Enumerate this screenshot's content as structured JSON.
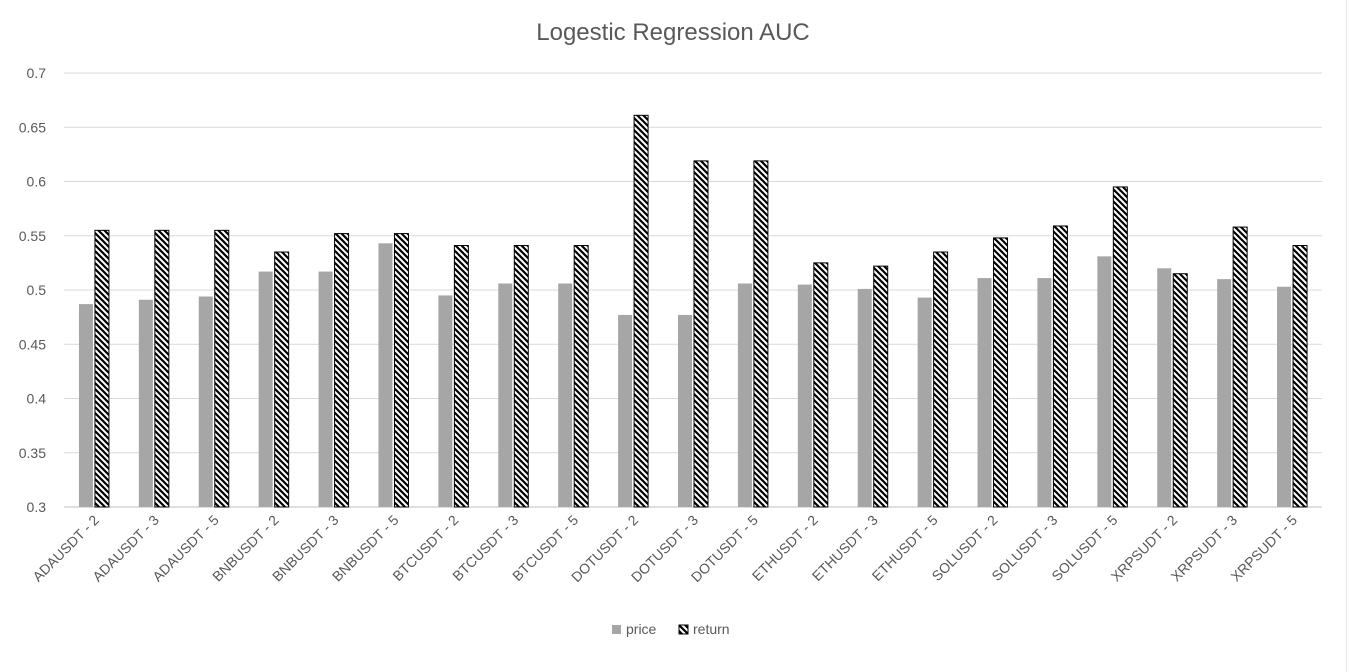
{
  "chart_data": {
    "type": "bar",
    "title": "Logestic Regression AUC",
    "xlabel": "",
    "ylabel": "",
    "ylim": [
      0.3,
      0.7
    ],
    "yticks": [
      "0.3",
      "0.35",
      "0.4",
      "0.45",
      "0.5",
      "0.55",
      "0.6",
      "0.65",
      "0.7"
    ],
    "grid": true,
    "legend": "bottom",
    "categories": [
      "ADAUSDT - 2",
      "ADAUSDT - 3",
      "ADAUSDT - 5",
      "BNBUSDT - 2",
      "BNBUSDT - 3",
      "BNBUSDT - 5",
      "BTCUSDT - 2",
      "BTCUSDT - 3",
      "BTCUSDT - 5",
      "DOTUSDT - 2",
      "DOTUSDT - 3",
      "DOTUSDT - 5",
      "ETHUSDT - 2",
      "ETHUSDT - 3",
      "ETHUSDT - 5",
      "SOLUSDT - 2",
      "SOLUSDT - 3",
      "SOLUSDT - 5",
      "XRPSUDT - 2",
      "XRPSUDT - 3",
      "XRPSUDT - 5"
    ],
    "series": [
      {
        "name": "price",
        "color": "#a6a6a6",
        "fill": "solid",
        "values": [
          0.487,
          0.491,
          0.494,
          0.517,
          0.517,
          0.543,
          0.495,
          0.506,
          0.506,
          0.477,
          0.477,
          0.506,
          0.505,
          0.501,
          0.493,
          0.511,
          0.511,
          0.531,
          0.52,
          0.51,
          0.503
        ]
      },
      {
        "name": "return",
        "color": "#000000",
        "fill": "diagonal-stripes",
        "values": [
          0.555,
          0.555,
          0.555,
          0.535,
          0.552,
          0.552,
          0.541,
          0.541,
          0.541,
          0.661,
          0.619,
          0.619,
          0.525,
          0.522,
          0.535,
          0.548,
          0.559,
          0.595,
          0.515,
          0.558,
          0.541
        ]
      }
    ]
  }
}
